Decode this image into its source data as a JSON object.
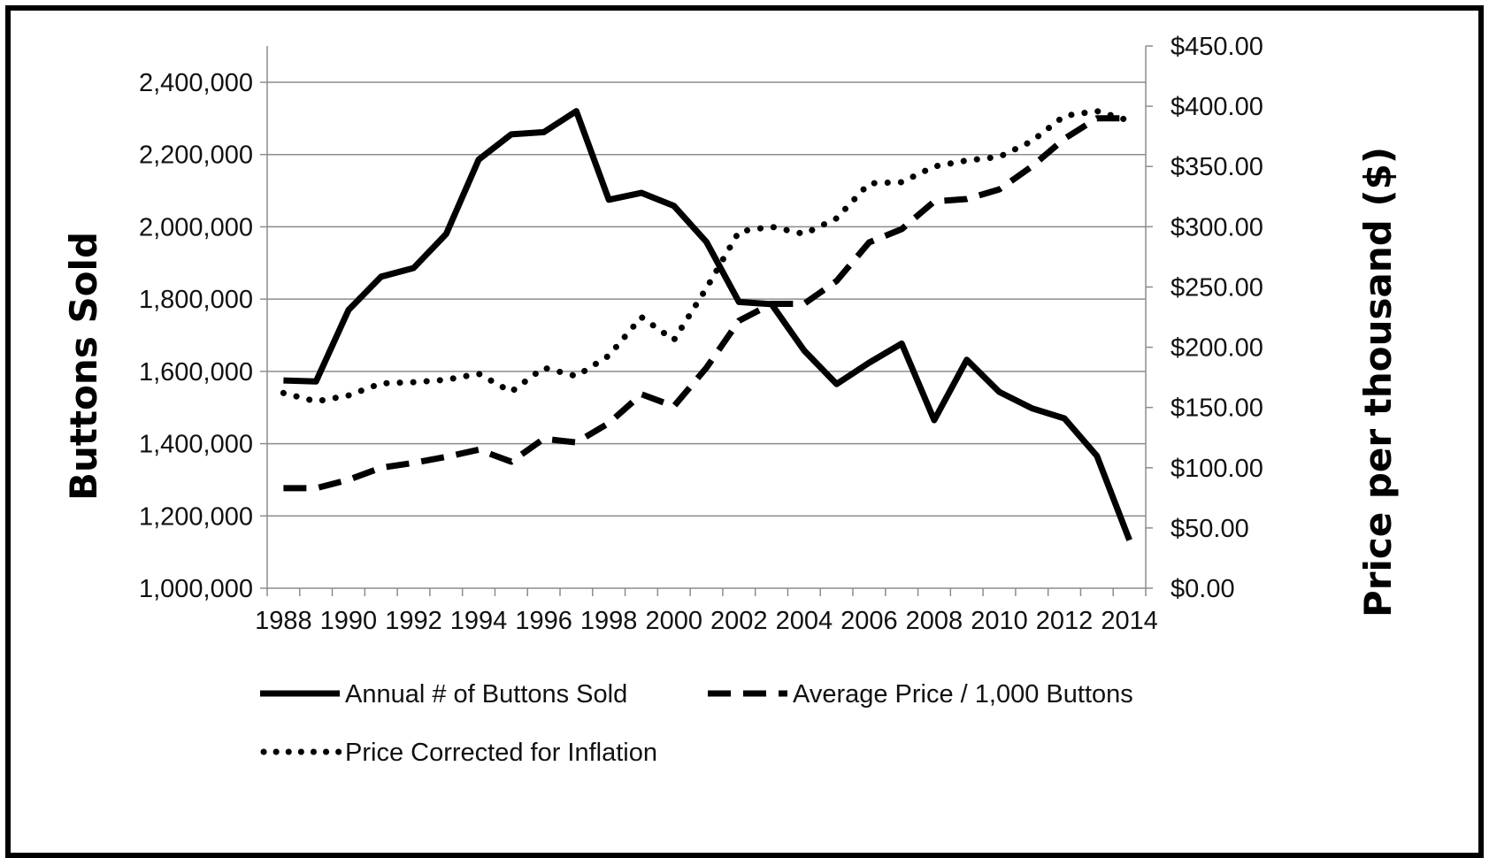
{
  "chart_data": {
    "type": "line",
    "title": "",
    "x": [
      1988,
      1989,
      1990,
      1991,
      1992,
      1993,
      1994,
      1995,
      1996,
      1997,
      1998,
      1999,
      2000,
      2001,
      2002,
      2003,
      2004,
      2005,
      2006,
      2007,
      2008,
      2009,
      2010,
      2011,
      2012,
      2013,
      2014
    ],
    "xlim": [
      1988,
      2014
    ],
    "x_ticks": [
      "1988",
      "1990",
      "1992",
      "1994",
      "1996",
      "1998",
      "2000",
      "2002",
      "2004",
      "2006",
      "2008",
      "2010",
      "2012",
      "2014"
    ],
    "y_left": {
      "label": "Buttons Sold",
      "lim": [
        1000000,
        2400000
      ],
      "ticks": [
        "1,000,000",
        "1,200,000",
        "1,400,000",
        "1,600,000",
        "1,800,000",
        "2,000,000",
        "2,200,000",
        "2,400,000"
      ]
    },
    "y_right": {
      "label": "Price per thousand  ($)",
      "lim": [
        0,
        450
      ],
      "ticks": [
        "$0.00",
        "$50.00",
        "$100.00",
        "$150.00",
        "$200.00",
        "$250.00",
        "$300.00",
        "$350.00",
        "$400.00",
        "$450.00"
      ]
    },
    "grid": "horizontal",
    "legend_position": "bottom",
    "series": [
      {
        "name": "Annual # of Buttons Sold",
        "axis": "left",
        "style": "solid",
        "values": [
          1575000,
          1572000,
          1770000,
          1862000,
          1886000,
          1980000,
          2186000,
          2256000,
          2262000,
          2320000,
          2075000,
          2094000,
          2058000,
          1958000,
          1792000,
          1786000,
          1658000,
          1565000,
          1624000,
          1677000,
          1465000,
          1632000,
          1543000,
          1498000,
          1470000,
          1366000,
          1133000
        ]
      },
      {
        "name": "Average Price / 1,000 Buttons",
        "axis": "right",
        "style": "dashed",
        "values": [
          83,
          83,
          90,
          100,
          104,
          109,
          115,
          105,
          124,
          121,
          137,
          161,
          151,
          183,
          222,
          236,
          236,
          255,
          287,
          298,
          321,
          323,
          331,
          350,
          373,
          390,
          390
        ]
      },
      {
        "name": "Price Corrected for Inflation",
        "axis": "right",
        "style": "dotted",
        "values": [
          162,
          155,
          160,
          170,
          171,
          173,
          178,
          163,
          183,
          176,
          193,
          225,
          206,
          249,
          296,
          300,
          294,
          307,
          336,
          337,
          350,
          355,
          358,
          371,
          392,
          396,
          388
        ]
      }
    ],
    "colors": {
      "lines": "#000000",
      "grid": "#8c8c8c",
      "axis": "#8c8c8c"
    }
  }
}
